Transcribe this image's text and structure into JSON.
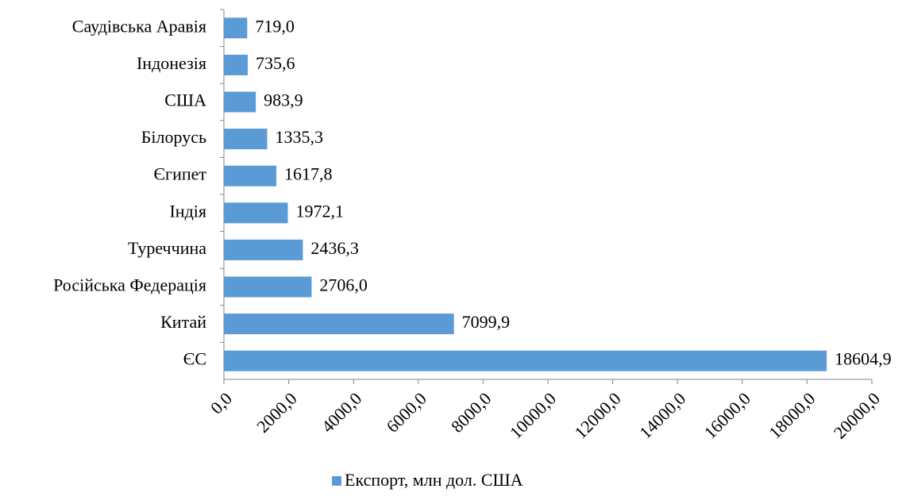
{
  "chart_data": {
    "type": "bar",
    "orientation": "horizontal",
    "categories": [
      "Саудівська Аравія",
      "Індонезія",
      "США",
      "Білорусь",
      "Єгипет",
      "Індія",
      "Туреччина",
      "Російська Федерація",
      "Китай",
      "ЄС"
    ],
    "series": [
      {
        "name": "Експорт, млн дол. США",
        "color": "#5b9bd5",
        "values": [
          719.0,
          735.6,
          983.9,
          1335.3,
          1617.8,
          1972.1,
          2436.3,
          2706.0,
          7099.9,
          18604.9
        ],
        "value_labels": [
          "719,0",
          "735,6",
          "983,9",
          "1335,3",
          "1617,8",
          "1972,1",
          "2436,3",
          "2706,0",
          "7099,9",
          "18604,9"
        ]
      }
    ],
    "xlim": [
      0,
      20000
    ],
    "xticks": [
      {
        "value": 0,
        "label": "0,0"
      },
      {
        "value": 2000,
        "label": "2000,0"
      },
      {
        "value": 4000,
        "label": "4000,0"
      },
      {
        "value": 6000,
        "label": "6000,0"
      },
      {
        "value": 8000,
        "label": "8000,0"
      },
      {
        "value": 10000,
        "label": "10000,0"
      },
      {
        "value": 12000,
        "label": "12000,0"
      },
      {
        "value": 14000,
        "label": "14000,0"
      },
      {
        "value": 16000,
        "label": "16000,0"
      },
      {
        "value": 18000,
        "label": "18000,0"
      },
      {
        "value": 20000,
        "label": "20000,0"
      }
    ],
    "legend": "bottom"
  }
}
